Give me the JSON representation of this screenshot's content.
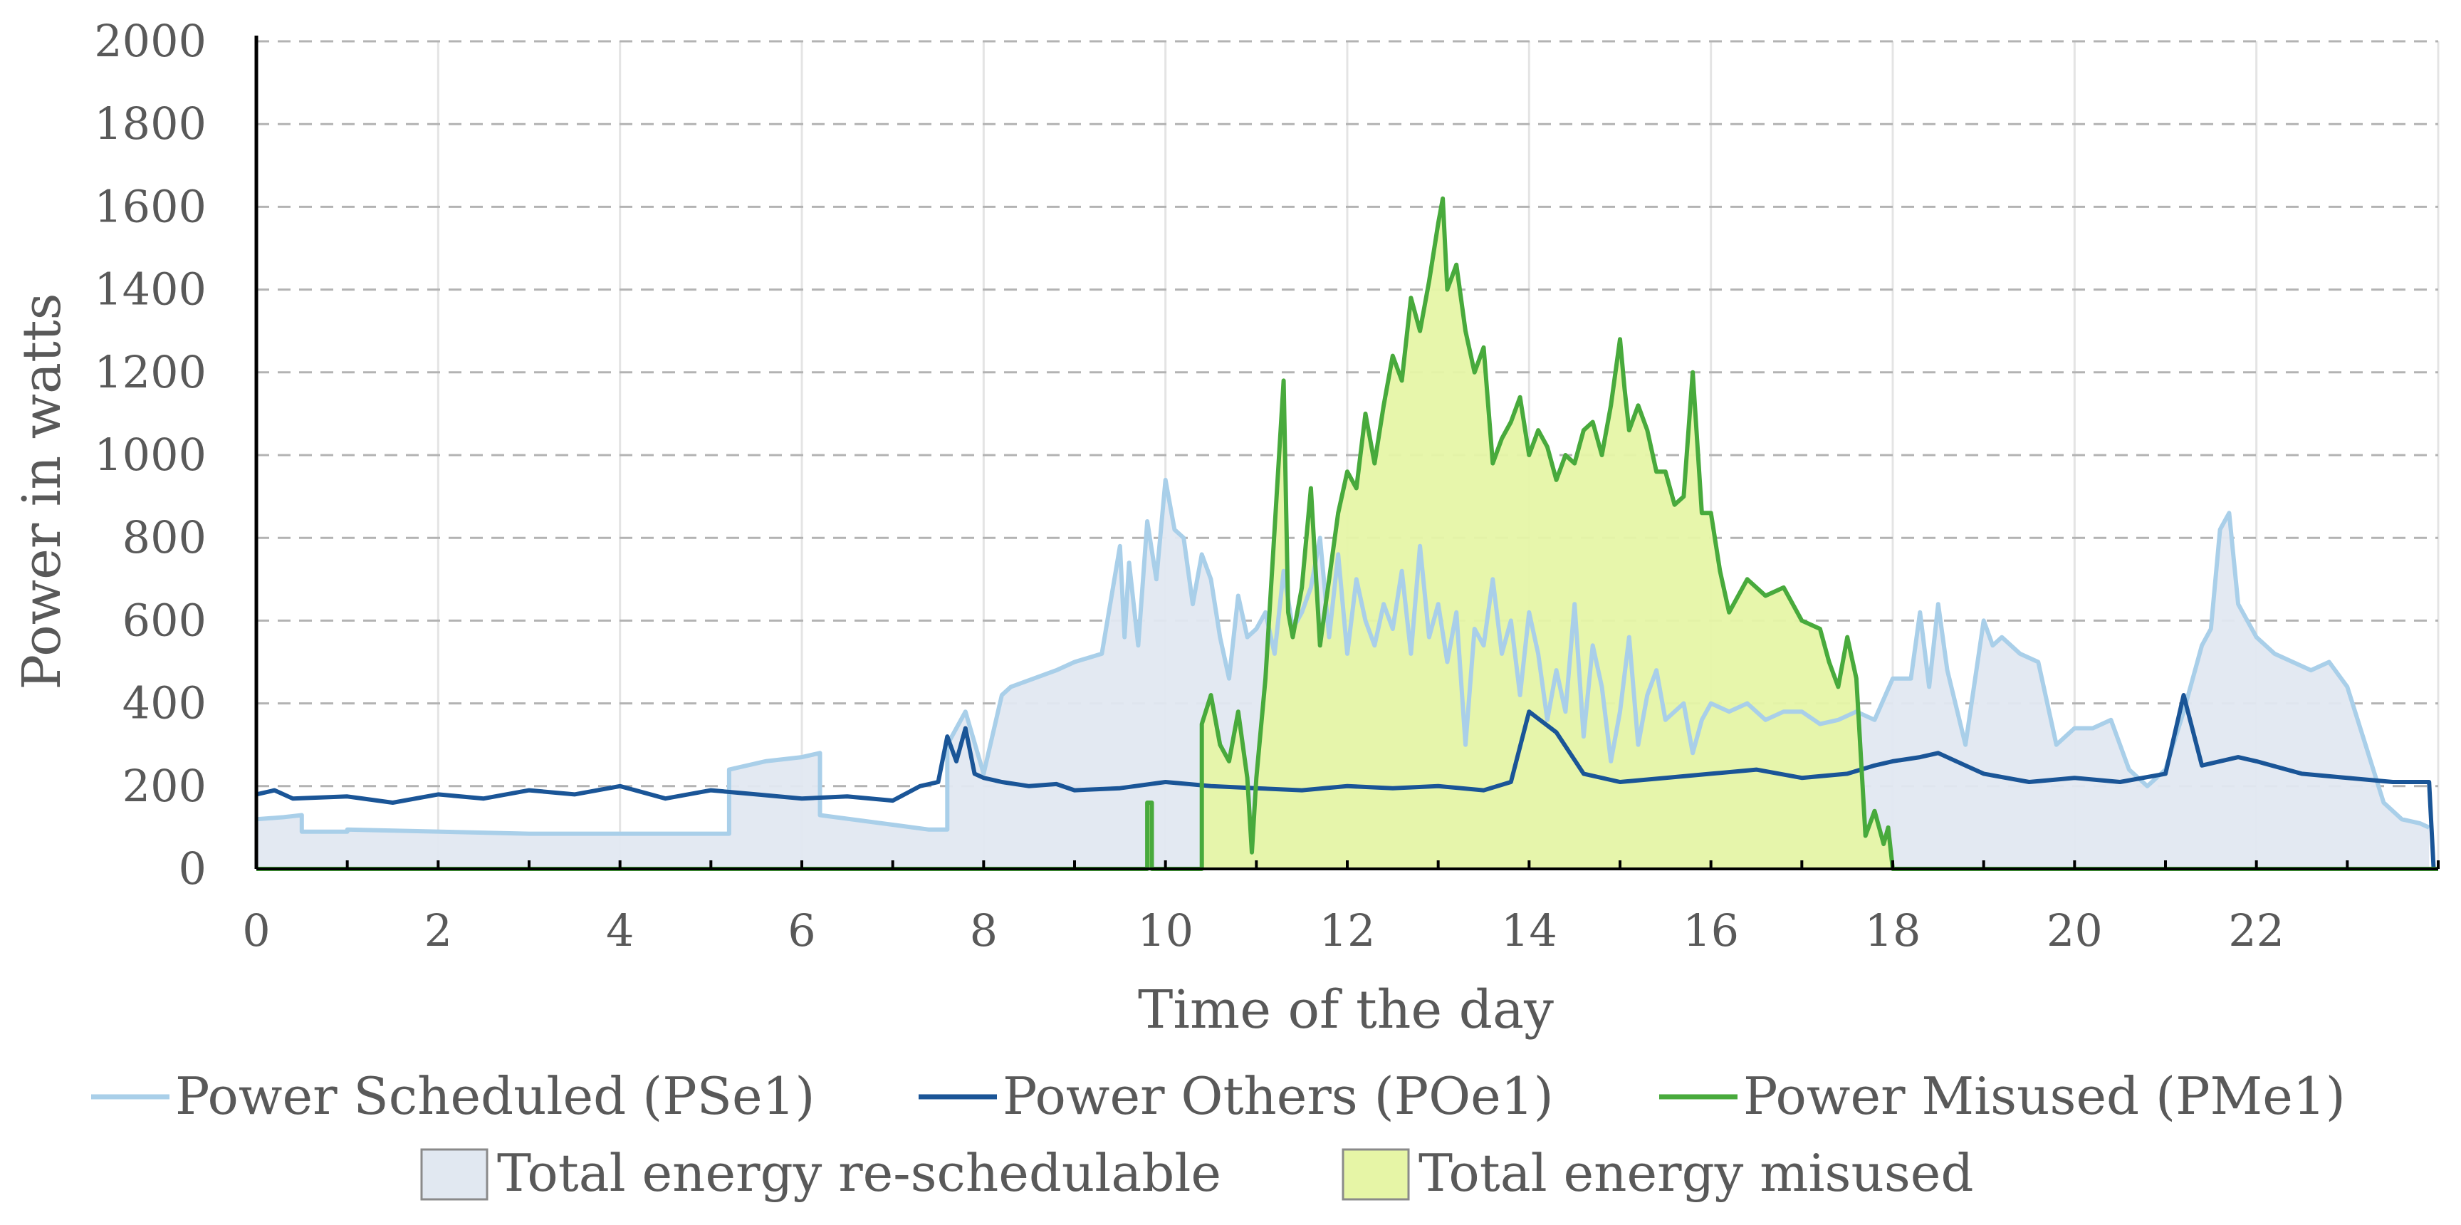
{
  "chart_data": {
    "type": "line",
    "title": "",
    "xlabel": "Time of the day",
    "ylabel": "Power in watts",
    "xlim": [
      0,
      24
    ],
    "ylim": [
      0,
      2000
    ],
    "x_ticks": [
      "0",
      "2",
      "4",
      "6",
      "8",
      "10",
      "12",
      "14",
      "16",
      "18",
      "20",
      "22"
    ],
    "y_ticks": [
      "0",
      "200",
      "400",
      "600",
      "800",
      "1000",
      "1200",
      "1400",
      "1600",
      "1800",
      "2000"
    ],
    "grid": "horizontal dashed, vertical light",
    "legend_position": "bottom",
    "series": [
      {
        "name": "Power Scheduled (PSe1)",
        "kind": "line",
        "color": "#a9cfe9",
        "x": [
          0,
          0.3,
          0.5,
          0.5,
          1.0,
          1.0,
          3.0,
          5.2,
          5.2,
          5.6,
          6.0,
          6.2,
          6.2,
          7.4,
          7.6,
          7.6,
          7.8,
          8.0,
          8.2,
          8.3,
          8.8,
          9.0,
          9.3,
          9.5,
          9.55,
          9.6,
          9.7,
          9.8,
          9.9,
          10.0,
          10.1,
          10.2,
          10.3,
          10.4,
          10.5,
          10.6,
          10.7,
          10.8,
          10.9,
          11.0,
          11.1,
          11.2,
          11.3,
          11.4,
          11.5,
          11.6,
          11.7,
          11.8,
          11.9,
          12.0,
          12.1,
          12.2,
          12.3,
          12.4,
          12.5,
          12.6,
          12.7,
          12.8,
          12.9,
          13.0,
          13.1,
          13.2,
          13.3,
          13.4,
          13.5,
          13.6,
          13.7,
          13.8,
          13.9,
          14.0,
          14.1,
          14.2,
          14.3,
          14.4,
          14.5,
          14.6,
          14.7,
          14.8,
          14.9,
          15.0,
          15.1,
          15.2,
          15.3,
          15.4,
          15.5,
          15.6,
          15.7,
          15.8,
          15.9,
          16.0,
          16.2,
          16.4,
          16.6,
          16.8,
          17.0,
          17.2,
          17.4,
          17.6,
          17.8,
          18.0,
          18.2,
          18.3,
          18.4,
          18.5,
          18.6,
          18.8,
          19.0,
          19.1,
          19.2,
          19.4,
          19.6,
          19.8,
          20.0,
          20.2,
          20.4,
          20.6,
          20.8,
          21.0,
          21.2,
          21.4,
          21.5,
          21.6,
          21.7,
          21.8,
          21.9,
          22.0,
          22.2,
          22.4,
          22.6,
          22.8,
          23.0,
          23.2,
          23.4,
          23.6,
          23.8,
          23.9
        ],
        "values": [
          120,
          125,
          130,
          90,
          90,
          95,
          85,
          85,
          240,
          260,
          270,
          280,
          130,
          95,
          95,
          300,
          380,
          230,
          420,
          440,
          480,
          500,
          520,
          780,
          560,
          740,
          540,
          840,
          700,
          940,
          820,
          800,
          640,
          760,
          700,
          560,
          460,
          660,
          560,
          580,
          620,
          520,
          720,
          580,
          620,
          680,
          800,
          560,
          760,
          520,
          700,
          600,
          540,
          640,
          580,
          720,
          520,
          780,
          560,
          640,
          500,
          620,
          300,
          580,
          540,
          700,
          520,
          600,
          420,
          620,
          520,
          360,
          480,
          380,
          640,
          320,
          540,
          440,
          260,
          380,
          560,
          300,
          420,
          480,
          360,
          380,
          400,
          280,
          360,
          400,
          380,
          400,
          360,
          380,
          380,
          350,
          360,
          380,
          360,
          460,
          460,
          620,
          440,
          640,
          480,
          300,
          600,
          540,
          560,
          520,
          500,
          300,
          340,
          340,
          360,
          240,
          200,
          240,
          380,
          540,
          580,
          820,
          860,
          640,
          600,
          560,
          520,
          500,
          480,
          500,
          440,
          300,
          160,
          120,
          110,
          100
        ]
      },
      {
        "name": "Power Others (POe1)",
        "kind": "line",
        "color": "#1a5597",
        "x": [
          0,
          0.2,
          0.4,
          1.0,
          1.5,
          2.0,
          2.5,
          3.0,
          3.5,
          4.0,
          4.5,
          5.0,
          5.5,
          6.0,
          6.5,
          7.0,
          7.3,
          7.5,
          7.6,
          7.7,
          7.8,
          7.9,
          8.0,
          8.2,
          8.5,
          8.8,
          9.0,
          9.5,
          10.0,
          10.5,
          11.0,
          11.5,
          12.0,
          12.5,
          13.0,
          13.5,
          13.8,
          14.0,
          14.3,
          14.6,
          15.0,
          15.5,
          16.0,
          16.5,
          17.0,
          17.5,
          17.8,
          18.0,
          18.3,
          18.5,
          18.8,
          19.0,
          19.5,
          20.0,
          20.5,
          21.0,
          21.2,
          21.4,
          21.6,
          21.8,
          22.0,
          22.5,
          23.0,
          23.5,
          23.9,
          23.95
        ],
        "values": [
          180,
          190,
          170,
          175,
          160,
          180,
          170,
          190,
          180,
          200,
          170,
          190,
          180,
          170,
          175,
          165,
          200,
          210,
          320,
          260,
          340,
          230,
          220,
          210,
          200,
          205,
          190,
          195,
          210,
          200,
          195,
          190,
          200,
          195,
          200,
          190,
          210,
          380,
          330,
          230,
          210,
          220,
          230,
          240,
          220,
          230,
          250,
          260,
          270,
          280,
          250,
          230,
          210,
          220,
          210,
          230,
          420,
          250,
          260,
          270,
          260,
          230,
          220,
          210,
          210,
          0
        ]
      },
      {
        "name": "Power Misused (PMe1)",
        "kind": "line",
        "color": "#48aa3c",
        "x": [
          0,
          9.8,
          9.8,
          9.85,
          9.85,
          10.4,
          10.4,
          10.5,
          10.6,
          10.7,
          10.8,
          10.9,
          10.95,
          11.0,
          11.1,
          11.2,
          11.3,
          11.35,
          11.4,
          11.5,
          11.6,
          11.7,
          11.8,
          11.9,
          12.0,
          12.1,
          12.2,
          12.3,
          12.4,
          12.5,
          12.6,
          12.7,
          12.8,
          12.9,
          13.0,
          13.05,
          13.1,
          13.2,
          13.3,
          13.4,
          13.5,
          13.6,
          13.7,
          13.8,
          13.9,
          14.0,
          14.1,
          14.2,
          14.3,
          14.4,
          14.5,
          14.6,
          14.7,
          14.8,
          14.9,
          15.0,
          15.05,
          15.1,
          15.2,
          15.3,
          15.4,
          15.5,
          15.6,
          15.7,
          15.8,
          15.9,
          16.0,
          16.1,
          16.2,
          16.4,
          16.6,
          16.8,
          17.0,
          17.2,
          17.3,
          17.4,
          17.5,
          17.6,
          17.7,
          17.8,
          17.9,
          17.95,
          18.0,
          24.0
        ],
        "values": [
          0,
          0,
          160,
          160,
          0,
          0,
          350,
          420,
          300,
          260,
          380,
          220,
          40,
          220,
          460,
          820,
          1180,
          620,
          560,
          680,
          920,
          540,
          700,
          860,
          960,
          920,
          1100,
          980,
          1120,
          1240,
          1180,
          1380,
          1300,
          1420,
          1560,
          1620,
          1400,
          1460,
          1300,
          1200,
          1260,
          980,
          1040,
          1080,
          1140,
          1000,
          1060,
          1020,
          940,
          1000,
          980,
          1060,
          1080,
          1000,
          1120,
          1280,
          1160,
          1060,
          1120,
          1060,
          960,
          960,
          880,
          900,
          1200,
          860,
          860,
          720,
          620,
          700,
          660,
          680,
          600,
          580,
          500,
          440,
          560,
          460,
          80,
          140,
          60,
          100,
          0,
          0
        ]
      },
      {
        "name": "Total energy re-schedulable",
        "kind": "area",
        "color": "#e1e8f1",
        "stroke": "#8a8a8a",
        "source_series": "Power Scheduled (PSe1)"
      },
      {
        "name": "Total energy misused",
        "kind": "area",
        "color": "#e6f5a6",
        "stroke": "#8a8a8a",
        "source_series": "Power Misused (PMe1)"
      }
    ]
  }
}
